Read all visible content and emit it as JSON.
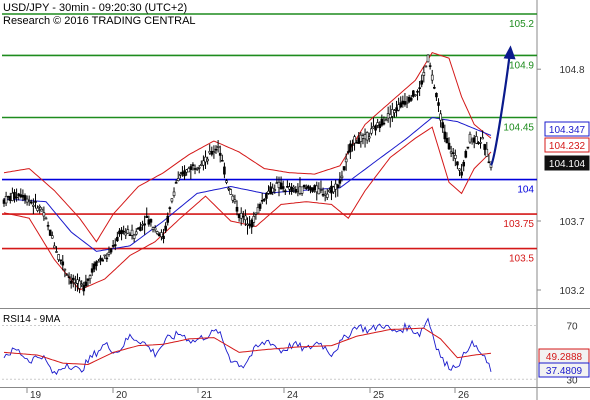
{
  "header": {
    "line1": "USD/JPY - 30min - 09:20:30 (UTC+2)",
    "line2": "Research © 2016 TRADING CENTRAL"
  },
  "colors": {
    "background": "#ffffff",
    "candle": "#000000",
    "ma_blue": "#1a1acc",
    "bollinger_red": "#d41818",
    "resistance_green": "#1e8c1e",
    "support_blue": "#0000dd",
    "support_red": "#d41818",
    "forecast_arrow": "#0a1a8c",
    "axis_text": "#333333",
    "price_tag_bg": "#111111",
    "price_tag_text": "#ffffff",
    "rsi_line": "#1a1acc",
    "rsi_ma": "#d41818",
    "rsi_tag_bg": "#f2f2f2"
  },
  "chart_data": {
    "type": "candlestick",
    "symbol": "USD/JPY",
    "timeframe": "30min",
    "title": "USD/JPY - 30min - 09:20:30 (UTC+2)",
    "x_ticks": [
      "19",
      "20",
      "21",
      "24",
      "25",
      "26"
    ],
    "price_axis": {
      "ticks": [
        103.2,
        103.7,
        104.8
      ],
      "tick_labels": [
        "103.2",
        "103.7",
        "104.8"
      ],
      "ylim": [
        103.05,
        105.4
      ]
    },
    "levels": [
      {
        "label": "105.2",
        "value": 105.2,
        "color": "green"
      },
      {
        "label": "104.9",
        "value": 104.9,
        "color": "green"
      },
      {
        "label": "104.45",
        "value": 104.45,
        "color": "green"
      },
      {
        "label": "104",
        "value": 104.0,
        "color": "blue"
      },
      {
        "label": "103.75",
        "value": 103.75,
        "color": "red"
      },
      {
        "label": "103.5",
        "value": 103.5,
        "color": "red"
      }
    ],
    "price_tags": [
      {
        "label": "104.347",
        "value": 104.347,
        "style": "blue-tag"
      },
      {
        "label": "104.232",
        "value": 104.232,
        "style": "red-tag"
      },
      {
        "label": "104.104",
        "value": 104.104,
        "style": "black-tag"
      }
    ],
    "price_path": [
      {
        "x": 0,
        "p": 103.85
      },
      {
        "x": 4,
        "p": 103.9
      },
      {
        "x": 9,
        "p": 103.78
      },
      {
        "x": 13,
        "p": 103.45
      },
      {
        "x": 16,
        "p": 103.27
      },
      {
        "x": 19,
        "p": 103.22
      },
      {
        "x": 22,
        "p": 103.4
      },
      {
        "x": 25,
        "p": 103.45
      },
      {
        "x": 28,
        "p": 103.63
      },
      {
        "x": 31,
        "p": 103.6
      },
      {
        "x": 34,
        "p": 103.72
      },
      {
        "x": 38,
        "p": 103.58
      },
      {
        "x": 41,
        "p": 103.98
      },
      {
        "x": 44,
        "p": 104.08
      },
      {
        "x": 48,
        "p": 104.14
      },
      {
        "x": 51,
        "p": 104.25
      },
      {
        "x": 53,
        "p": 104.0
      },
      {
        "x": 56,
        "p": 103.75
      },
      {
        "x": 59,
        "p": 103.68
      },
      {
        "x": 62,
        "p": 103.88
      },
      {
        "x": 65,
        "p": 103.96
      },
      {
        "x": 69,
        "p": 103.92
      },
      {
        "x": 73,
        "p": 103.94
      },
      {
        "x": 77,
        "p": 103.9
      },
      {
        "x": 80,
        "p": 103.98
      },
      {
        "x": 83,
        "p": 104.28
      },
      {
        "x": 86,
        "p": 104.3
      },
      {
        "x": 90,
        "p": 104.42
      },
      {
        "x": 93,
        "p": 104.5
      },
      {
        "x": 96,
        "p": 104.58
      },
      {
        "x": 99,
        "p": 104.65
      },
      {
        "x": 101,
        "p": 104.88
      },
      {
        "x": 103,
        "p": 104.6
      },
      {
        "x": 105,
        "p": 104.32
      },
      {
        "x": 107,
        "p": 104.18
      },
      {
        "x": 109,
        "p": 104.06
      },
      {
        "x": 111,
        "p": 104.3
      },
      {
        "x": 114,
        "p": 104.28
      },
      {
        "x": 116,
        "p": 104.104
      }
    ],
    "upper_band": [
      {
        "x": 0,
        "p": 104.05
      },
      {
        "x": 6,
        "p": 104.08
      },
      {
        "x": 12,
        "p": 103.92
      },
      {
        "x": 18,
        "p": 103.72
      },
      {
        "x": 22,
        "p": 103.55
      },
      {
        "x": 26,
        "p": 103.75
      },
      {
        "x": 32,
        "p": 103.95
      },
      {
        "x": 38,
        "p": 104.05
      },
      {
        "x": 44,
        "p": 104.18
      },
      {
        "x": 50,
        "p": 104.28
      },
      {
        "x": 56,
        "p": 104.2
      },
      {
        "x": 62,
        "p": 104.08
      },
      {
        "x": 68,
        "p": 104.05
      },
      {
        "x": 74,
        "p": 104.04
      },
      {
        "x": 80,
        "p": 104.1
      },
      {
        "x": 86,
        "p": 104.4
      },
      {
        "x": 92,
        "p": 104.56
      },
      {
        "x": 98,
        "p": 104.72
      },
      {
        "x": 102,
        "p": 104.92
      },
      {
        "x": 106,
        "p": 104.88
      },
      {
        "x": 109,
        "p": 104.6
      },
      {
        "x": 112,
        "p": 104.4
      },
      {
        "x": 116,
        "p": 104.3
      }
    ],
    "lower_band": [
      {
        "x": 0,
        "p": 103.76
      },
      {
        "x": 6,
        "p": 103.72
      },
      {
        "x": 12,
        "p": 103.42
      },
      {
        "x": 18,
        "p": 103.2
      },
      {
        "x": 24,
        "p": 103.28
      },
      {
        "x": 30,
        "p": 103.45
      },
      {
        "x": 36,
        "p": 103.55
      },
      {
        "x": 42,
        "p": 103.72
      },
      {
        "x": 48,
        "p": 103.88
      },
      {
        "x": 54,
        "p": 103.7
      },
      {
        "x": 60,
        "p": 103.66
      },
      {
        "x": 66,
        "p": 103.82
      },
      {
        "x": 72,
        "p": 103.84
      },
      {
        "x": 78,
        "p": 103.82
      },
      {
        "x": 82,
        "p": 103.72
      },
      {
        "x": 86,
        "p": 103.92
      },
      {
        "x": 92,
        "p": 104.16
      },
      {
        "x": 98,
        "p": 104.3
      },
      {
        "x": 102,
        "p": 104.38
      },
      {
        "x": 106,
        "p": 103.98
      },
      {
        "x": 109,
        "p": 103.9
      },
      {
        "x": 112,
        "p": 104.08
      },
      {
        "x": 116,
        "p": 104.2
      }
    ],
    "moving_average": [
      {
        "x": 0,
        "p": 103.86
      },
      {
        "x": 10,
        "p": 103.84
      },
      {
        "x": 16,
        "p": 103.62
      },
      {
        "x": 22,
        "p": 103.48
      },
      {
        "x": 30,
        "p": 103.52
      },
      {
        "x": 38,
        "p": 103.7
      },
      {
        "x": 46,
        "p": 103.9
      },
      {
        "x": 54,
        "p": 103.95
      },
      {
        "x": 62,
        "p": 103.9
      },
      {
        "x": 70,
        "p": 103.92
      },
      {
        "x": 80,
        "p": 103.94
      },
      {
        "x": 88,
        "p": 104.12
      },
      {
        "x": 96,
        "p": 104.3
      },
      {
        "x": 102,
        "p": 104.45
      },
      {
        "x": 108,
        "p": 104.42
      },
      {
        "x": 116,
        "p": 104.32
      }
    ],
    "forecast": {
      "from": {
        "x": 116,
        "p": 104.104
      },
      "to": {
        "x": 119,
        "p": 104.9
      }
    },
    "rsi": {
      "label": "RSI14 - 9MA",
      "ticks": [
        30,
        70
      ],
      "tick_labels": [
        "30",
        "70"
      ],
      "ylim": [
        25,
        80
      ],
      "rsi_value_label": "37.4809",
      "ma_value_label": "49.2888",
      "rsi_values": [
        {
          "x": 0,
          "v": 48
        },
        {
          "x": 3,
          "v": 52
        },
        {
          "x": 6,
          "v": 44
        },
        {
          "x": 9,
          "v": 48
        },
        {
          "x": 12,
          "v": 33
        },
        {
          "x": 15,
          "v": 42
        },
        {
          "x": 18,
          "v": 36
        },
        {
          "x": 21,
          "v": 47
        },
        {
          "x": 24,
          "v": 56
        },
        {
          "x": 27,
          "v": 50
        },
        {
          "x": 30,
          "v": 62
        },
        {
          "x": 33,
          "v": 58
        },
        {
          "x": 36,
          "v": 49
        },
        {
          "x": 39,
          "v": 60
        },
        {
          "x": 42,
          "v": 64
        },
        {
          "x": 45,
          "v": 58
        },
        {
          "x": 48,
          "v": 62
        },
        {
          "x": 51,
          "v": 66
        },
        {
          "x": 54,
          "v": 45
        },
        {
          "x": 57,
          "v": 40
        },
        {
          "x": 60,
          "v": 53
        },
        {
          "x": 63,
          "v": 59
        },
        {
          "x": 66,
          "v": 51
        },
        {
          "x": 69,
          "v": 56
        },
        {
          "x": 72,
          "v": 52
        },
        {
          "x": 75,
          "v": 58
        },
        {
          "x": 78,
          "v": 49
        },
        {
          "x": 81,
          "v": 60
        },
        {
          "x": 84,
          "v": 70
        },
        {
          "x": 87,
          "v": 66
        },
        {
          "x": 90,
          "v": 71
        },
        {
          "x": 93,
          "v": 65
        },
        {
          "x": 96,
          "v": 69
        },
        {
          "x": 99,
          "v": 64
        },
        {
          "x": 101,
          "v": 75
        },
        {
          "x": 103,
          "v": 55
        },
        {
          "x": 105,
          "v": 41
        },
        {
          "x": 107,
          "v": 39
        },
        {
          "x": 109,
          "v": 44
        },
        {
          "x": 111,
          "v": 57
        },
        {
          "x": 113,
          "v": 52
        },
        {
          "x": 116,
          "v": 37.4809
        }
      ],
      "ma_values": [
        {
          "x": 0,
          "v": 50
        },
        {
          "x": 8,
          "v": 48
        },
        {
          "x": 14,
          "v": 42
        },
        {
          "x": 20,
          "v": 41
        },
        {
          "x": 26,
          "v": 50
        },
        {
          "x": 32,
          "v": 55
        },
        {
          "x": 38,
          "v": 56
        },
        {
          "x": 44,
          "v": 60
        },
        {
          "x": 50,
          "v": 61
        },
        {
          "x": 56,
          "v": 50
        },
        {
          "x": 62,
          "v": 52
        },
        {
          "x": 70,
          "v": 54
        },
        {
          "x": 78,
          "v": 55
        },
        {
          "x": 84,
          "v": 62
        },
        {
          "x": 92,
          "v": 67
        },
        {
          "x": 100,
          "v": 68
        },
        {
          "x": 104,
          "v": 60
        },
        {
          "x": 108,
          "v": 46
        },
        {
          "x": 112,
          "v": 48
        },
        {
          "x": 116,
          "v": 49.2888
        }
      ]
    }
  }
}
